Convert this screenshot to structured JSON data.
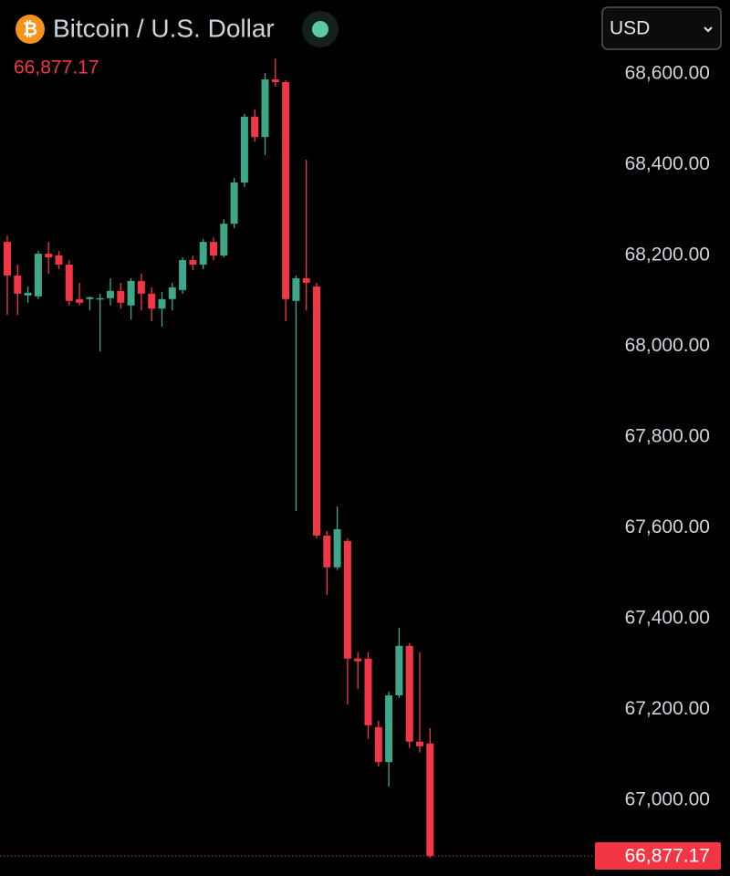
{
  "chart_data": {
    "type": "candlestick",
    "symbol_icon": "₿",
    "title": "Bitcoin / U.S. Dollar",
    "currency": "USD",
    "last_price": {
      "value": 66877.17,
      "label": "66,877.17"
    },
    "up_color": "#3fa68a",
    "down_color": "#f23645",
    "ylim": [
      66833,
      68763
    ],
    "yticks": [
      {
        "value": 68600,
        "label": "68,600.00"
      },
      {
        "value": 68400,
        "label": "68,400.00"
      },
      {
        "value": 68200,
        "label": "68,200.00"
      },
      {
        "value": 68000,
        "label": "68,000.00"
      },
      {
        "value": 67800,
        "label": "67,800.00"
      },
      {
        "value": 67600,
        "label": "67,600.00"
      },
      {
        "value": 67400,
        "label": "67,400.00"
      },
      {
        "value": 67200,
        "label": "67,200.00"
      },
      {
        "value": 67000,
        "label": "67,000.00"
      }
    ],
    "open": [
      68230,
      68156,
      68112,
      68110,
      68204,
      68200,
      68180,
      68104,
      68104,
      68104,
      68106,
      68122,
      68090,
      68144,
      68116,
      68083,
      68104,
      68124,
      68190,
      68180,
      68230,
      68200,
      68270,
      68361,
      68506,
      68461,
      68588,
      68582,
      68100,
      68150,
      68132,
      67583,
      67513,
      67571,
      67312,
      67312,
      67161,
      67084,
      67231,
      67340,
      67129,
      67125
    ],
    "high": [
      68244,
      68180,
      68132,
      68210,
      68230,
      68210,
      68190,
      68140,
      68110,
      68116,
      68150,
      68140,
      68150,
      68160,
      68130,
      68120,
      68140,
      68196,
      68200,
      68236,
      68240,
      68280,
      68371,
      68512,
      68522,
      68602,
      68634,
      68586,
      68156,
      68411,
      68140,
      67593,
      67647,
      67577,
      67326,
      67326,
      67175,
      67239,
      67380,
      67346,
      67326,
      67159
    ],
    "low": [
      68069,
      68069,
      68096,
      68104,
      68160,
      68170,
      68090,
      68090,
      68079,
      67989,
      68090,
      68083,
      68059,
      68079,
      68055,
      68043,
      68079,
      68116,
      68168,
      68170,
      68190,
      68196,
      68260,
      68351,
      68451,
      68421,
      68572,
      68055,
      67637,
      68079,
      67577,
      67452,
      67507,
      67211,
      67245,
      67135,
      67074,
      67030,
      67225,
      67115,
      67105,
      66873
    ],
    "close": [
      68156,
      68116,
      68118,
      68204,
      68196,
      68180,
      68100,
      68096,
      68108,
      68106,
      68122,
      68096,
      68144,
      68116,
      68083,
      68104,
      68130,
      68190,
      68180,
      68230,
      68200,
      68270,
      68361,
      68506,
      68461,
      68588,
      68582,
      68104,
      68150,
      68140,
      67583,
      67513,
      67597,
      67312,
      67306,
      67165,
      67084,
      67231,
      67340,
      67129,
      67119,
      66877.17
    ]
  }
}
